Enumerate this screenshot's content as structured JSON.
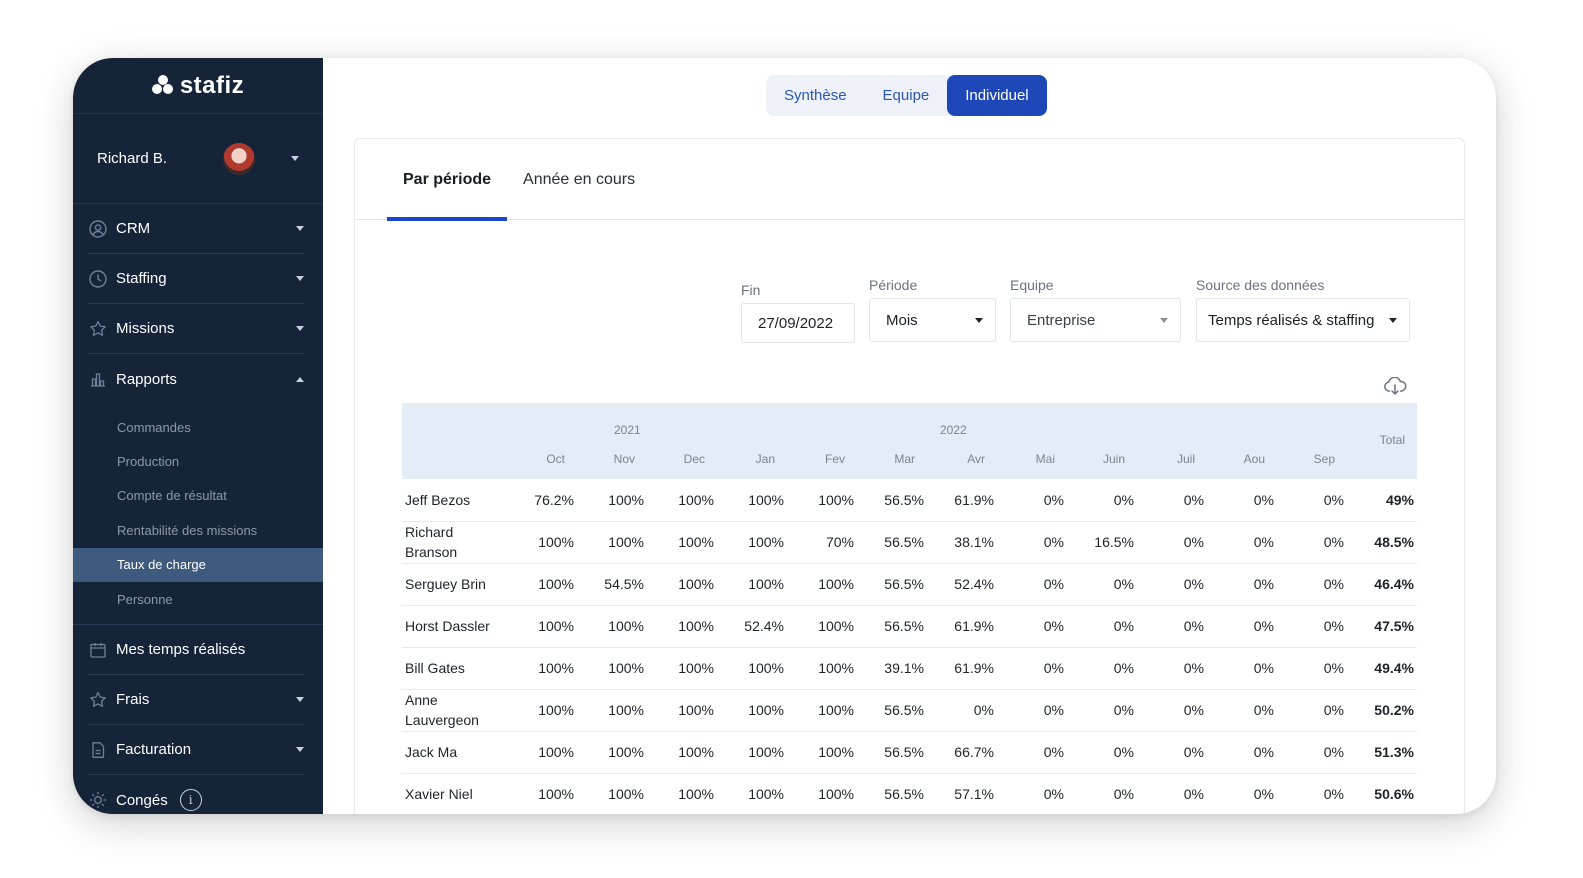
{
  "brand": {
    "name": "stafiz"
  },
  "user": {
    "name": "Richard B."
  },
  "nav": {
    "crm": "CRM",
    "staffing": "Staffing",
    "missions": "Missions",
    "rapports": "Rapports",
    "rapports_sub": [
      "Commandes",
      "Production",
      "Compte de résultat",
      "Rentabilité des missions",
      "Taux de charge",
      "Personne"
    ],
    "mes_temps": "Mes temps réalisés",
    "frais": "Frais",
    "facturation": "Facturation",
    "conges": "Congés",
    "conges_info": "i"
  },
  "view_switch": {
    "options": [
      "Synthèse",
      "Equipe",
      "Individuel"
    ],
    "selected": "Individuel"
  },
  "tabs": [
    "Par période",
    "Année en cours"
  ],
  "filters": {
    "fin": {
      "label": "Fin",
      "value": "27/09/2022"
    },
    "periode": {
      "label": "Période",
      "value": "Mois"
    },
    "equipe": {
      "label": "Equipe",
      "value": "Entreprise"
    },
    "source": {
      "label": "Source des données",
      "value": "Temps réalisés & staffing"
    }
  },
  "table": {
    "years": [
      "2021",
      "2022"
    ],
    "months": [
      "Oct",
      "Nov",
      "Dec",
      "Jan",
      "Fev",
      "Mar",
      "Avr",
      "Mai",
      "Juin",
      "Juil",
      "Aou",
      "Sep"
    ],
    "total_label": "Total",
    "rows": [
      {
        "name": "Jeff Bezos",
        "values": [
          "76.2%",
          "100%",
          "100%",
          "100%",
          "100%",
          "56.5%",
          "61.9%",
          "0%",
          "0%",
          "0%",
          "0%",
          "0%"
        ],
        "total": "49%"
      },
      {
        "name": "Richard Branson",
        "values": [
          "100%",
          "100%",
          "100%",
          "100%",
          "70%",
          "56.5%",
          "38.1%",
          "0%",
          "16.5%",
          "0%",
          "0%",
          "0%"
        ],
        "total": "48.5%"
      },
      {
        "name": "Serguey Brin",
        "values": [
          "100%",
          "54.5%",
          "100%",
          "100%",
          "100%",
          "56.5%",
          "52.4%",
          "0%",
          "0%",
          "0%",
          "0%",
          "0%"
        ],
        "total": "46.4%"
      },
      {
        "name": "Horst Dassler",
        "values": [
          "100%",
          "100%",
          "100%",
          "52.4%",
          "100%",
          "56.5%",
          "61.9%",
          "0%",
          "0%",
          "0%",
          "0%",
          "0%"
        ],
        "total": "47.5%"
      },
      {
        "name": "Bill Gates",
        "values": [
          "100%",
          "100%",
          "100%",
          "100%",
          "100%",
          "39.1%",
          "61.9%",
          "0%",
          "0%",
          "0%",
          "0%",
          "0%"
        ],
        "total": "49.4%"
      },
      {
        "name": "Anne Lauvergeon",
        "values": [
          "100%",
          "100%",
          "100%",
          "100%",
          "100%",
          "56.5%",
          "0%",
          "0%",
          "0%",
          "0%",
          "0%",
          "0%"
        ],
        "total": "50.2%"
      },
      {
        "name": "Jack Ma",
        "values": [
          "100%",
          "100%",
          "100%",
          "100%",
          "100%",
          "56.5%",
          "66.7%",
          "0%",
          "0%",
          "0%",
          "0%",
          "0%"
        ],
        "total": "51.3%"
      },
      {
        "name": "Xavier Niel",
        "values": [
          "100%",
          "100%",
          "100%",
          "100%",
          "100%",
          "56.5%",
          "57.1%",
          "0%",
          "0%",
          "0%",
          "0%",
          "0%"
        ],
        "total": "50.6%"
      }
    ]
  },
  "colors": {
    "sidebar_bg": "#16243a",
    "accent": "#1e47b8",
    "active_sub": "#3e5a7c",
    "table_header_bg": "#e3ecf7"
  },
  "icons": {
    "download": "cloud-download-icon",
    "help": "help-icon"
  }
}
